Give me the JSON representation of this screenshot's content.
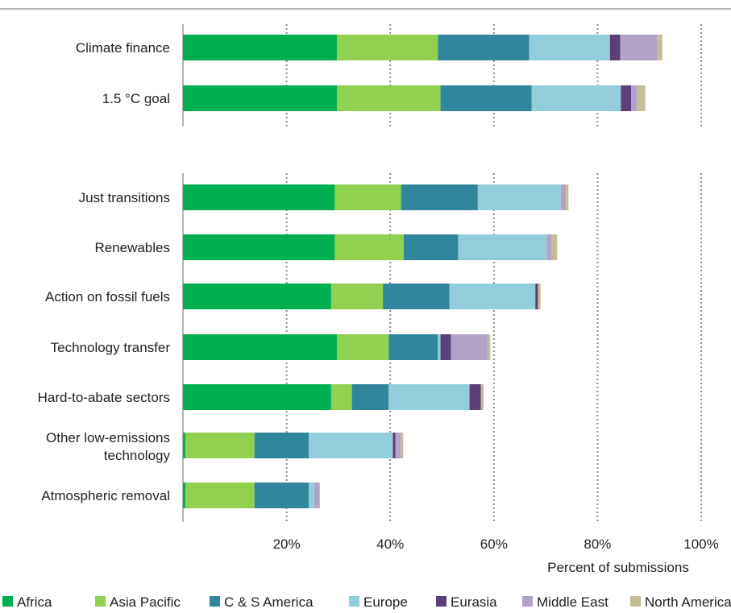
{
  "chart_data": {
    "type": "bar",
    "orientation": "horizontal",
    "stacked": true,
    "xlabel": "Percent of submissions",
    "xlim": [
      0,
      100
    ],
    "x_ticks": [
      "20%",
      "40%",
      "60%",
      "80%",
      "100%"
    ],
    "grid": "vertical dotted",
    "legend_position": "bottom",
    "groups": [
      {
        "categories": [
          "Climate finance",
          "1.5 °C  goal"
        ]
      },
      {
        "categories": [
          "Just transitions",
          "Renewables",
          "Action on fossil fuels",
          "Technology transfer",
          "Hard-to-abate sectors",
          "Other low-emissions technology",
          "Atmospheric removal"
        ]
      }
    ],
    "categories": [
      "Climate finance",
      "1.5 °C  goal",
      "Just transitions",
      "Renewables",
      "Action on fossil fuels",
      "Technology transfer",
      "Hard-to-abate sectors",
      "Other low-emissions technology",
      "Atmospheric removal"
    ],
    "series": [
      {
        "name": "Africa",
        "color": "#00b050",
        "values": [
          29.7,
          29.7,
          29.3,
          29.3,
          28.6,
          29.7,
          28.6,
          0.5,
          0.5
        ]
      },
      {
        "name": "Asia Pacific",
        "color": "#92d050",
        "values": [
          19.5,
          20.0,
          12.8,
          13.3,
          10.0,
          10.0,
          4.0,
          13.3,
          13.3
        ]
      },
      {
        "name": "C & S America",
        "color": "#31859c",
        "values": [
          17.6,
          17.6,
          14.8,
          10.5,
          12.8,
          9.5,
          7.1,
          10.5,
          10.5
        ]
      },
      {
        "name": "Europe",
        "color": "#92cddc",
        "values": [
          15.6,
          17.2,
          16.0,
          17.1,
          16.6,
          0.5,
          15.6,
          16.2,
          1.0
        ]
      },
      {
        "name": "Eurasia",
        "color": "#5c3f78",
        "values": [
          2.0,
          2.0,
          0.0,
          0.0,
          0.5,
          2.0,
          2.2,
          0.5,
          0.0
        ]
      },
      {
        "name": "Middle East",
        "color": "#b3a2c7",
        "values": [
          7.1,
          1.1,
          1.0,
          1.0,
          0.0,
          7.1,
          0.0,
          1.0,
          1.1
        ]
      },
      {
        "name": "North America",
        "color": "#c4bd97",
        "values": [
          1.0,
          1.6,
          0.5,
          1.0,
          0.5,
          0.5,
          0.5,
          0.5,
          0.0
        ]
      }
    ]
  }
}
